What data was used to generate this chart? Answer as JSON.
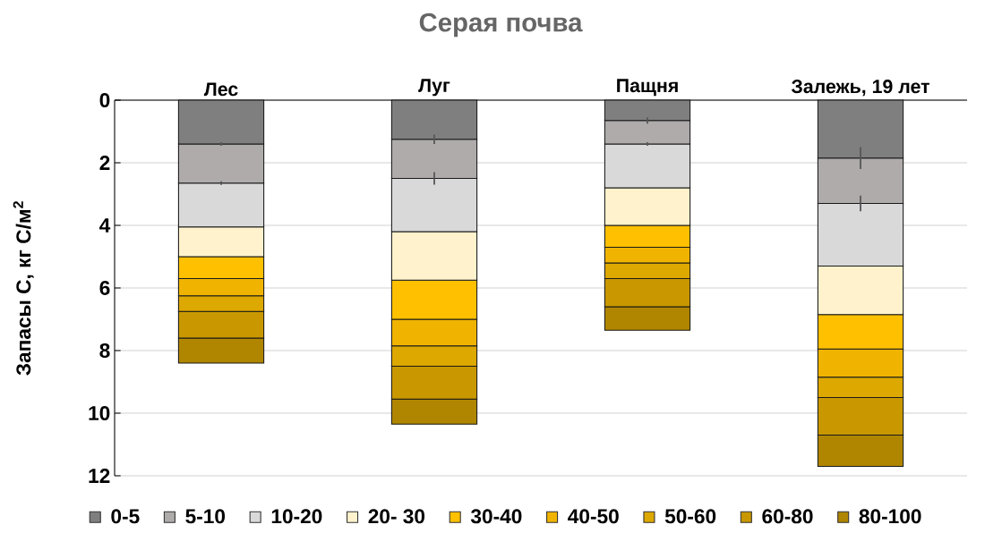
{
  "chart_data": {
    "type": "bar",
    "stacked": true,
    "title": "Серая почва",
    "ylabel": "Запасы С, кг С/м$^{2}$",
    "categories": [
      "Лес",
      "Луг",
      "Пащня",
      "Залежь, 19 лет"
    ],
    "ylim": [
      12,
      0
    ],
    "yticks": [
      0,
      2,
      4,
      6,
      8,
      10,
      12
    ],
    "grid": "y",
    "legend": "bottom",
    "series": [
      {
        "name": "0-5",
        "color": "#7f7f7f",
        "values": [
          1.4,
          1.25,
          0.65,
          1.85
        ],
        "errors": [
          0.06,
          0.15,
          0.1,
          0.35
        ]
      },
      {
        "name": "5-10",
        "color": "#afabab",
        "values": [
          1.25,
          1.25,
          0.75,
          1.45
        ],
        "errors": [
          0.06,
          0.2,
          0.06,
          0.25
        ]
      },
      {
        "name": "10-20",
        "color": "#d9d9d9",
        "values": [
          1.4,
          1.7,
          1.4,
          2.0
        ]
      },
      {
        "name": "20- 30",
        "color": "#fff2cc",
        "values": [
          0.95,
          1.55,
          1.2,
          1.55
        ]
      },
      {
        "name": "30-40",
        "color": "#ffc000",
        "values": [
          0.7,
          1.25,
          0.7,
          1.1
        ]
      },
      {
        "name": "40-50",
        "color": "#f0b400",
        "values": [
          0.55,
          0.85,
          0.5,
          0.9
        ]
      },
      {
        "name": "50-60",
        "color": "#dda800",
        "values": [
          0.5,
          0.65,
          0.5,
          0.65
        ]
      },
      {
        "name": "60-80",
        "color": "#c99800",
        "values": [
          0.85,
          1.05,
          0.9,
          1.2
        ]
      },
      {
        "name": "80-100",
        "color": "#b08600",
        "values": [
          0.8,
          0.8,
          0.75,
          1.0
        ]
      }
    ]
  }
}
